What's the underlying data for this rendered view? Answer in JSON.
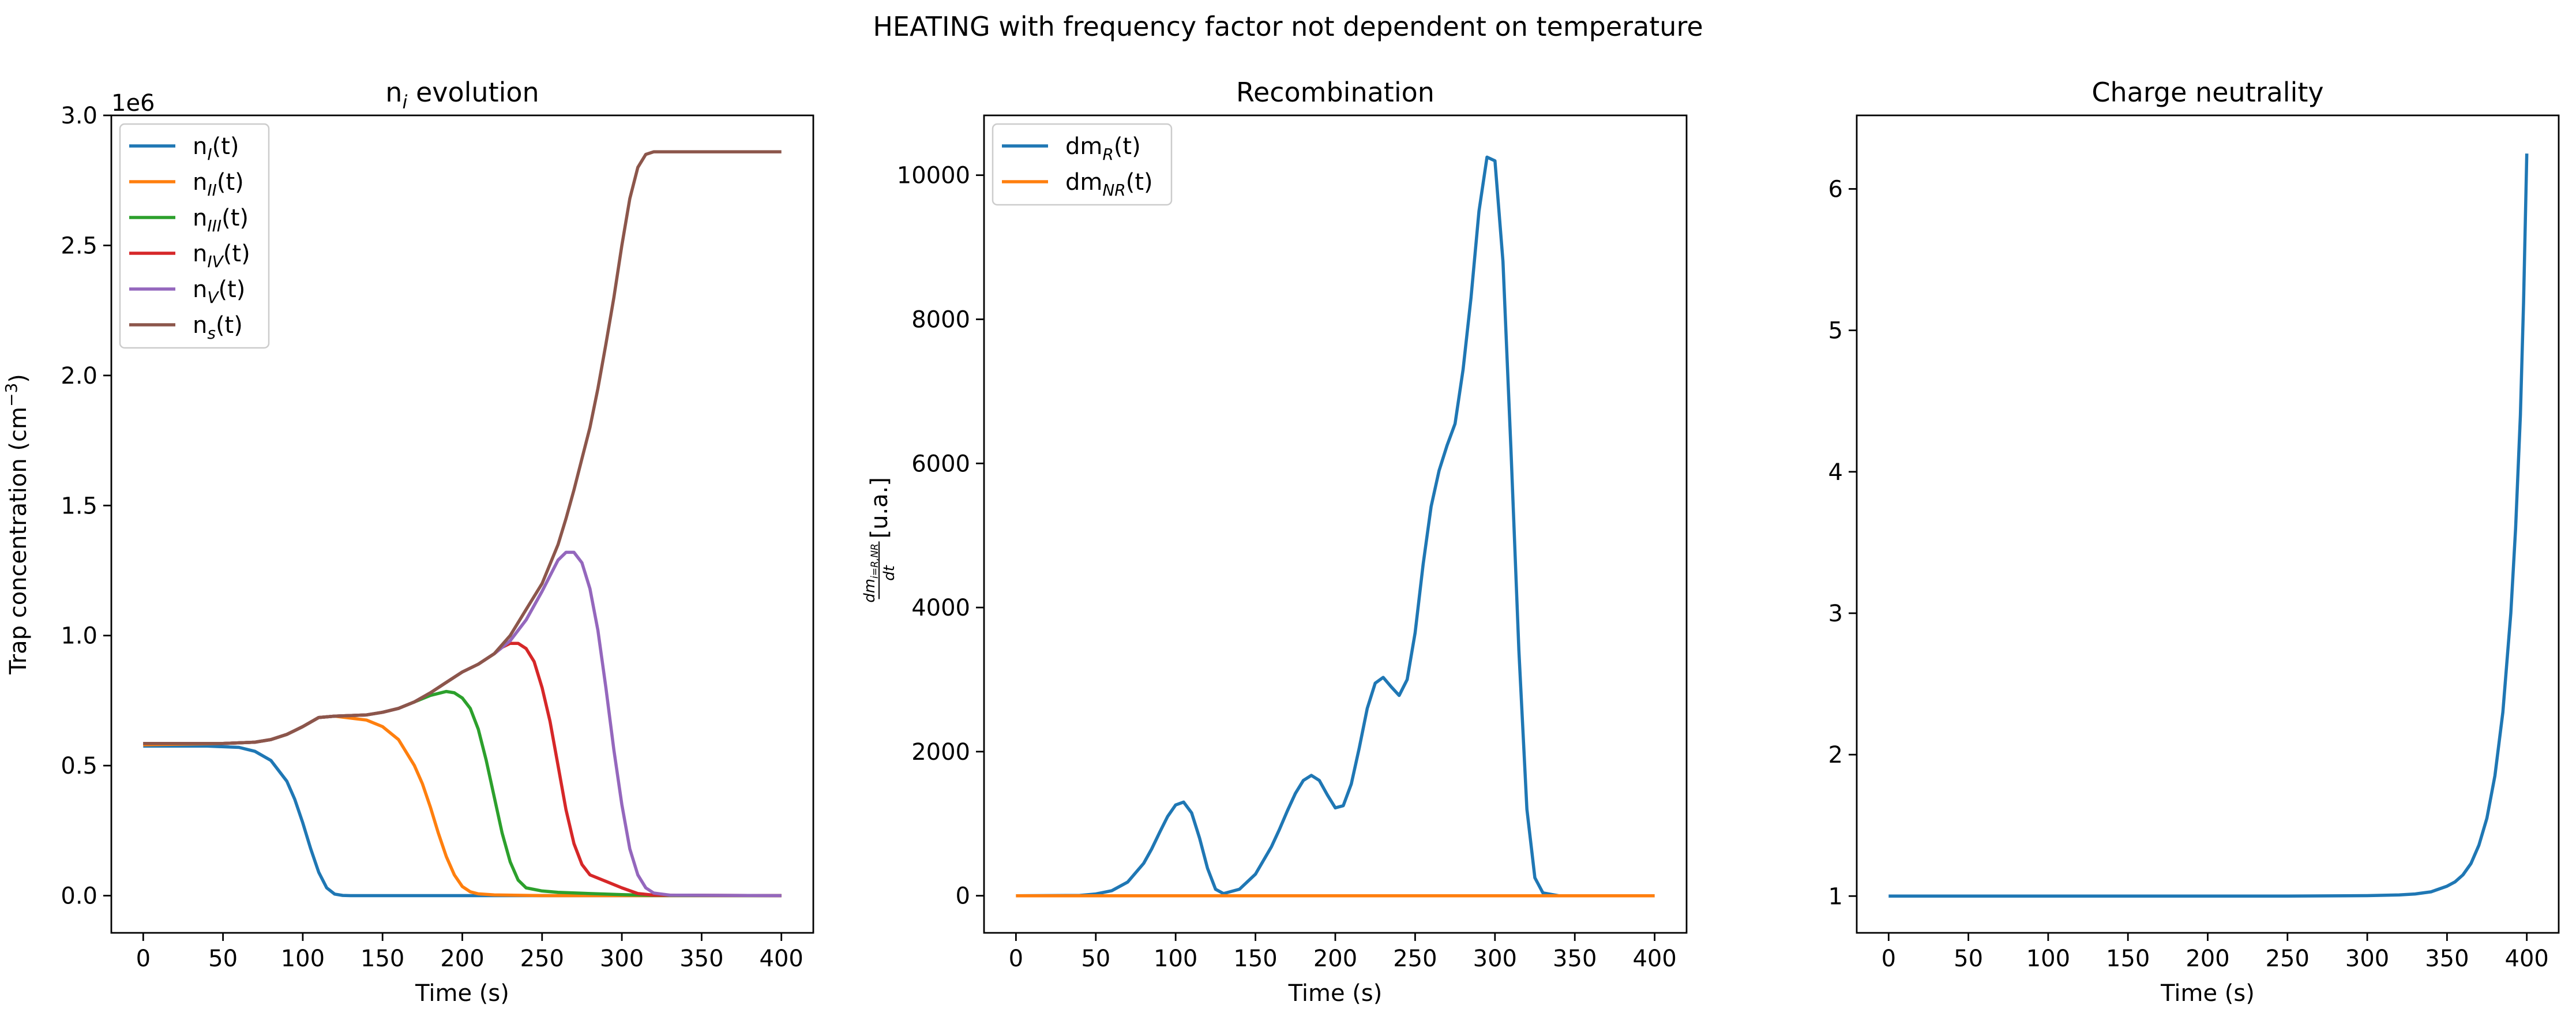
{
  "figure": {
    "suptitle": "HEATING with frequency factor not dependent on temperature"
  },
  "colors": {
    "c0": "#1f77b4",
    "c1": "#ff7f0e",
    "c2": "#2ca02c",
    "c3": "#d62728",
    "c4": "#9467bd",
    "c5": "#8c564b"
  },
  "chart_data": [
    {
      "type": "line",
      "title": "n_i evolution",
      "title_parts": [
        "n",
        "i",
        " evolution"
      ],
      "xlabel": "Time (s)",
      "ylabel": "Trap concentration (cm⁻³)",
      "ylabel_parts": [
        "Trap concentration (cm",
        "−3",
        ")"
      ],
      "y_offset_text": "1e6",
      "xlim": [
        -20,
        420
      ],
      "ylim": [
        -0.143,
        3.0
      ],
      "xticks": [
        0,
        50,
        100,
        150,
        200,
        250,
        300,
        350,
        400
      ],
      "yticks": [
        0.0,
        0.5,
        1.0,
        1.5,
        2.0,
        2.5,
        3.0
      ],
      "ytick_labels": [
        "0.0",
        "0.5",
        "1.0",
        "1.5",
        "2.0",
        "2.5",
        "3.0"
      ],
      "grid": false,
      "legend_position": "upper-left",
      "series": [
        {
          "name": "n_I(t)",
          "label_parts": [
            "n",
            "I",
            "(t)"
          ],
          "color_key": "c0",
          "x": [
            0,
            40,
            60,
            70,
            80,
            90,
            95,
            100,
            105,
            110,
            115,
            120,
            125,
            130,
            200,
            300,
            400
          ],
          "y": [
            0.575,
            0.575,
            0.57,
            0.555,
            0.52,
            0.44,
            0.37,
            0.28,
            0.18,
            0.09,
            0.03,
            0.006,
            0.001,
            0,
            0,
            0,
            0
          ]
        },
        {
          "name": "n_II(t)",
          "label_parts": [
            "n",
            "II",
            "(t)"
          ],
          "color_key": "c1",
          "x": [
            0,
            50,
            70,
            80,
            90,
            100,
            110,
            120,
            140,
            150,
            160,
            170,
            175,
            180,
            185,
            190,
            195,
            200,
            205,
            210,
            220,
            250,
            300,
            400
          ],
          "y": [
            0.58,
            0.585,
            0.59,
            0.6,
            0.62,
            0.65,
            0.685,
            0.69,
            0.675,
            0.65,
            0.6,
            0.5,
            0.43,
            0.34,
            0.24,
            0.15,
            0.08,
            0.035,
            0.015,
            0.007,
            0.003,
            0,
            0,
            0
          ]
        },
        {
          "name": "n_III(t)",
          "label_parts": [
            "n",
            "III",
            "(t)"
          ],
          "color_key": "c2",
          "x": [
            0,
            50,
            70,
            80,
            90,
            100,
            110,
            120,
            140,
            150,
            160,
            170,
            180,
            190,
            195,
            200,
            205,
            210,
            215,
            220,
            225,
            230,
            235,
            240,
            250,
            260,
            280,
            300,
            320,
            400
          ],
          "y": [
            0.585,
            0.585,
            0.59,
            0.6,
            0.62,
            0.65,
            0.685,
            0.69,
            0.695,
            0.705,
            0.72,
            0.745,
            0.77,
            0.785,
            0.78,
            0.76,
            0.72,
            0.64,
            0.52,
            0.38,
            0.24,
            0.13,
            0.06,
            0.03,
            0.018,
            0.013,
            0.008,
            0.004,
            0.001,
            0
          ]
        },
        {
          "name": "n_IV(t)",
          "label_parts": [
            "n",
            "IV",
            "(t)"
          ],
          "color_key": "c3",
          "x": [
            0,
            50,
            70,
            80,
            90,
            100,
            110,
            120,
            140,
            150,
            160,
            170,
            180,
            190,
            200,
            210,
            220,
            225,
            230,
            235,
            240,
            245,
            250,
            255,
            260,
            265,
            270,
            275,
            280,
            290,
            300,
            310,
            320,
            400
          ],
          "y": [
            0.585,
            0.585,
            0.59,
            0.6,
            0.62,
            0.65,
            0.685,
            0.69,
            0.695,
            0.705,
            0.72,
            0.745,
            0.78,
            0.82,
            0.86,
            0.89,
            0.93,
            0.955,
            0.97,
            0.97,
            0.95,
            0.9,
            0.8,
            0.67,
            0.5,
            0.33,
            0.2,
            0.12,
            0.08,
            0.055,
            0.03,
            0.008,
            0.002,
            0
          ]
        },
        {
          "name": "n_V(t)",
          "label_parts": [
            "n",
            "V",
            "(t)"
          ],
          "color_key": "c4",
          "x": [
            0,
            50,
            70,
            80,
            90,
            100,
            110,
            120,
            140,
            150,
            160,
            170,
            180,
            190,
            200,
            210,
            220,
            230,
            240,
            250,
            255,
            260,
            265,
            270,
            275,
            280,
            285,
            290,
            295,
            300,
            305,
            310,
            315,
            320,
            330,
            400
          ],
          "y": [
            0.585,
            0.585,
            0.59,
            0.6,
            0.62,
            0.65,
            0.685,
            0.69,
            0.695,
            0.705,
            0.72,
            0.745,
            0.78,
            0.82,
            0.86,
            0.89,
            0.93,
            0.98,
            1.06,
            1.17,
            1.23,
            1.29,
            1.32,
            1.32,
            1.28,
            1.18,
            1.02,
            0.8,
            0.56,
            0.35,
            0.18,
            0.08,
            0.03,
            0.01,
            0.002,
            0
          ]
        },
        {
          "name": "n_s(t)",
          "label_parts": [
            "n",
            "s",
            "(t)"
          ],
          "color_key": "c5",
          "x": [
            0,
            50,
            70,
            80,
            90,
            100,
            110,
            120,
            140,
            150,
            160,
            170,
            180,
            190,
            200,
            210,
            220,
            230,
            240,
            250,
            260,
            265,
            270,
            275,
            280,
            285,
            290,
            295,
            300,
            305,
            310,
            315,
            320,
            325,
            330,
            400
          ],
          "y": [
            0.585,
            0.585,
            0.59,
            0.6,
            0.62,
            0.65,
            0.685,
            0.69,
            0.695,
            0.705,
            0.72,
            0.745,
            0.78,
            0.82,
            0.86,
            0.89,
            0.93,
            1.0,
            1.1,
            1.2,
            1.35,
            1.45,
            1.56,
            1.68,
            1.8,
            1.95,
            2.12,
            2.3,
            2.5,
            2.68,
            2.8,
            2.85,
            2.86,
            2.86,
            2.86,
            2.86
          ]
        }
      ]
    },
    {
      "type": "line",
      "title": "Recombination",
      "xlabel": "Time (s)",
      "ylabel": "dm_{i=R,NR}/dt [u.a.]",
      "ylabel_frac": {
        "num_main": "dm",
        "num_sub": "i=R,NR",
        "den": "dt",
        "suffix": " [u.a.]"
      },
      "xlim": [
        -20,
        420
      ],
      "ylim": [
        -515,
        10830
      ],
      "xticks": [
        0,
        50,
        100,
        150,
        200,
        250,
        300,
        350,
        400
      ],
      "yticks": [
        0,
        2000,
        4000,
        6000,
        8000,
        10000
      ],
      "ytick_labels": [
        "0",
        "2000",
        "4000",
        "6000",
        "8000",
        "10000"
      ],
      "grid": false,
      "legend_position": "upper-left",
      "series": [
        {
          "name": "dm_R(t)",
          "label_parts": [
            "dm",
            "R",
            "(t)"
          ],
          "color_key": "c0",
          "x": [
            0,
            40,
            50,
            60,
            70,
            80,
            85,
            90,
            95,
            100,
            105,
            110,
            115,
            120,
            125,
            130,
            140,
            150,
            160,
            165,
            170,
            175,
            180,
            185,
            190,
            195,
            200,
            205,
            210,
            215,
            220,
            225,
            230,
            235,
            240,
            245,
            250,
            255,
            260,
            265,
            270,
            275,
            280,
            285,
            290,
            295,
            300,
            305,
            310,
            315,
            320,
            325,
            330,
            340,
            400
          ],
          "y": [
            0,
            5,
            25,
            70,
            190,
            450,
            650,
            880,
            1100,
            1260,
            1300,
            1150,
            800,
            380,
            90,
            30,
            90,
            300,
            680,
            920,
            1180,
            1420,
            1600,
            1670,
            1600,
            1400,
            1220,
            1250,
            1550,
            2050,
            2600,
            2950,
            3030,
            2900,
            2780,
            3000,
            3650,
            4600,
            5400,
            5900,
            6250,
            6550,
            7300,
            8300,
            9500,
            10250,
            10200,
            8800,
            6200,
            3400,
            1200,
            250,
            40,
            0,
            0
          ]
        },
        {
          "name": "dm_NR(t)",
          "label_parts": [
            "dm",
            "NR",
            "(t)"
          ],
          "color_key": "c1",
          "x": [
            0,
            400
          ],
          "y": [
            0,
            0
          ]
        }
      ]
    },
    {
      "type": "line",
      "title": "Charge neutrality",
      "xlabel": "Time (s)",
      "ylabel": "",
      "xlim": [
        -20,
        420
      ],
      "ylim": [
        0.74,
        6.52
      ],
      "xticks": [
        0,
        50,
        100,
        150,
        200,
        250,
        300,
        350,
        400
      ],
      "yticks": [
        1,
        2,
        3,
        4,
        5,
        6
      ],
      "ytick_labels": [
        "1",
        "2",
        "3",
        "4",
        "5",
        "6"
      ],
      "grid": false,
      "series": [
        {
          "color_key": "c0",
          "x": [
            0,
            250,
            300,
            320,
            330,
            340,
            350,
            355,
            360,
            365,
            370,
            375,
            380,
            385,
            390,
            393,
            396,
            398,
            400
          ],
          "y": [
            1,
            1,
            1.003,
            1.008,
            1.015,
            1.03,
            1.07,
            1.1,
            1.15,
            1.23,
            1.36,
            1.55,
            1.85,
            2.3,
            3.0,
            3.6,
            4.4,
            5.2,
            6.25
          ]
        }
      ]
    }
  ]
}
